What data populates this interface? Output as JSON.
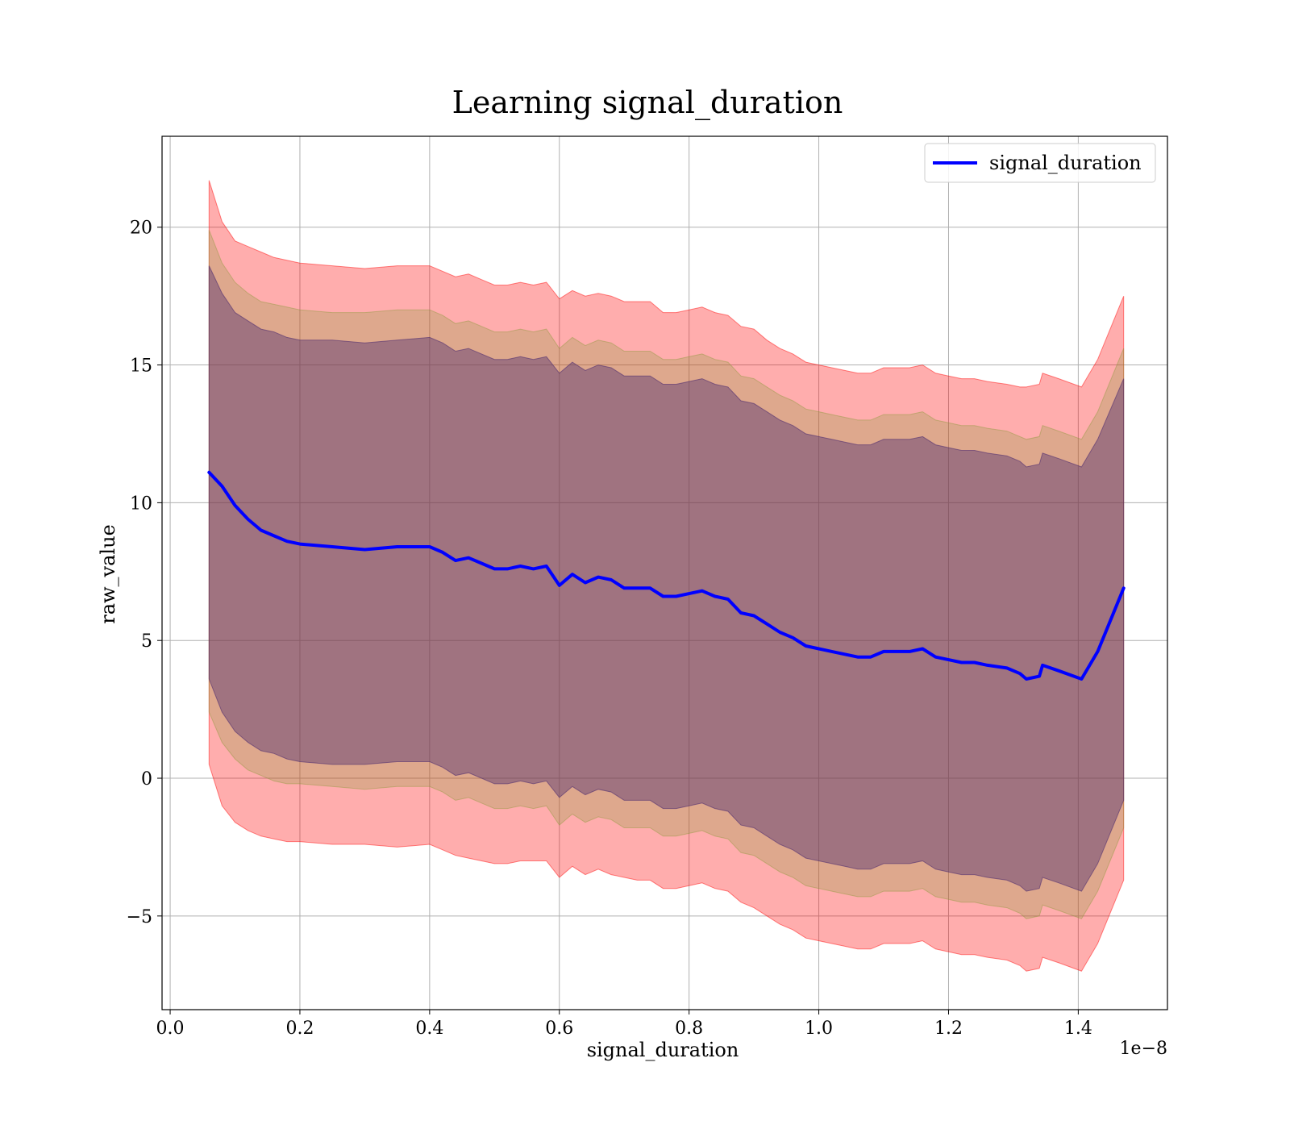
{
  "chart_data": {
    "type": "line",
    "title": "Learning signal_duration",
    "xlabel": "signal_duration",
    "ylabel": "raw_value",
    "x_offset_label": "1e−8",
    "xlim": [
      -0.0125,
      1.5375
    ],
    "ylim": [
      -8.4,
      23.3
    ],
    "xticks": [
      0.0,
      0.2,
      0.4,
      0.6,
      0.8,
      1.0,
      1.2,
      1.4
    ],
    "xtick_labels": [
      "0.0",
      "0.2",
      "0.4",
      "0.6",
      "0.8",
      "1.0",
      "1.2",
      "1.4"
    ],
    "yticks": [
      -5,
      0,
      5,
      10,
      15,
      20
    ],
    "ytick_labels": [
      "−5",
      "0",
      "5",
      "10",
      "15",
      "20"
    ],
    "grid": true,
    "legend": {
      "position": "upper-right",
      "entries": [
        "signal_duration"
      ]
    },
    "series": [
      {
        "name": "signal_duration",
        "color": "#0000ff",
        "x": [
          0.06,
          0.08,
          0.1,
          0.12,
          0.14,
          0.16,
          0.18,
          0.2,
          0.25,
          0.3,
          0.35,
          0.4,
          0.42,
          0.44,
          0.46,
          0.48,
          0.5,
          0.52,
          0.54,
          0.56,
          0.58,
          0.6,
          0.62,
          0.64,
          0.66,
          0.68,
          0.7,
          0.72,
          0.74,
          0.76,
          0.78,
          0.8,
          0.82,
          0.84,
          0.86,
          0.88,
          0.9,
          0.92,
          0.94,
          0.96,
          0.98,
          1.0,
          1.02,
          1.04,
          1.06,
          1.08,
          1.1,
          1.12,
          1.14,
          1.16,
          1.18,
          1.2,
          1.22,
          1.24,
          1.26,
          1.29,
          1.31,
          1.32,
          1.34,
          1.345,
          1.37,
          1.405,
          1.43,
          1.47
        ],
        "y": [
          11.1,
          10.6,
          9.9,
          9.4,
          9.0,
          8.8,
          8.6,
          8.5,
          8.4,
          8.3,
          8.4,
          8.4,
          8.2,
          7.9,
          8.0,
          7.8,
          7.6,
          7.6,
          7.7,
          7.6,
          7.7,
          7.0,
          7.4,
          7.1,
          7.3,
          7.2,
          6.9,
          6.9,
          6.9,
          6.6,
          6.6,
          6.7,
          6.8,
          6.6,
          6.5,
          6.0,
          5.9,
          5.6,
          5.3,
          5.1,
          4.8,
          4.7,
          4.6,
          4.5,
          4.4,
          4.4,
          4.6,
          4.6,
          4.6,
          4.7,
          4.4,
          4.3,
          4.2,
          4.2,
          4.1,
          4.0,
          3.8,
          3.6,
          3.7,
          4.1,
          3.9,
          3.6,
          4.6,
          6.9
        ]
      }
    ],
    "bands": [
      {
        "color": "#ff0000",
        "opacity": 0.32,
        "lower": [
          0.5,
          -1.0,
          -1.6,
          -1.9,
          -2.1,
          -2.2,
          -2.3,
          -2.3,
          -2.4,
          -2.4,
          -2.5,
          -2.4,
          -2.6,
          -2.8,
          -2.9,
          -3.0,
          -3.1,
          -3.1,
          -3.0,
          -3.0,
          -3.0,
          -3.6,
          -3.2,
          -3.5,
          -3.3,
          -3.5,
          -3.6,
          -3.7,
          -3.7,
          -4.0,
          -4.0,
          -3.9,
          -3.8,
          -4.0,
          -4.1,
          -4.5,
          -4.7,
          -5.0,
          -5.3,
          -5.5,
          -5.8,
          -5.9,
          -6.0,
          -6.1,
          -6.2,
          -6.2,
          -6.0,
          -6.0,
          -6.0,
          -5.9,
          -6.2,
          -6.3,
          -6.4,
          -6.4,
          -6.5,
          -6.6,
          -6.8,
          -7.0,
          -6.9,
          -6.5,
          -6.7,
          -7.0,
          -6.0,
          -3.7
        ],
        "upper": [
          21.7,
          20.2,
          19.5,
          19.3,
          19.1,
          18.9,
          18.8,
          18.7,
          18.6,
          18.5,
          18.6,
          18.6,
          18.4,
          18.2,
          18.3,
          18.1,
          17.9,
          17.9,
          18.0,
          17.9,
          18.0,
          17.4,
          17.7,
          17.5,
          17.6,
          17.5,
          17.3,
          17.3,
          17.3,
          16.9,
          16.9,
          17.0,
          17.1,
          16.9,
          16.8,
          16.4,
          16.3,
          15.9,
          15.6,
          15.4,
          15.1,
          15.0,
          14.9,
          14.8,
          14.7,
          14.7,
          14.9,
          14.9,
          14.9,
          15.0,
          14.7,
          14.6,
          14.5,
          14.5,
          14.4,
          14.3,
          14.2,
          14.2,
          14.3,
          14.7,
          14.5,
          14.2,
          15.2,
          17.5
        ]
      },
      {
        "color": "#8a9a3a",
        "opacity": 0.28,
        "lower": [
          2.4,
          1.3,
          0.7,
          0.3,
          0.1,
          -0.1,
          -0.2,
          -0.2,
          -0.3,
          -0.4,
          -0.3,
          -0.3,
          -0.5,
          -0.8,
          -0.7,
          -0.9,
          -1.1,
          -1.1,
          -1.0,
          -1.1,
          -1.0,
          -1.7,
          -1.3,
          -1.6,
          -1.4,
          -1.5,
          -1.8,
          -1.8,
          -1.8,
          -2.1,
          -2.1,
          -2.0,
          -1.9,
          -2.1,
          -2.2,
          -2.7,
          -2.8,
          -3.1,
          -3.4,
          -3.6,
          -3.9,
          -4.0,
          -4.1,
          -4.2,
          -4.3,
          -4.3,
          -4.1,
          -4.1,
          -4.1,
          -4.0,
          -4.3,
          -4.4,
          -4.5,
          -4.5,
          -4.6,
          -4.7,
          -4.9,
          -5.1,
          -5.0,
          -4.6,
          -4.8,
          -5.1,
          -4.1,
          -1.8
        ],
        "upper": [
          19.9,
          18.7,
          18.0,
          17.6,
          17.3,
          17.2,
          17.1,
          17.0,
          16.9,
          16.9,
          17.0,
          17.0,
          16.8,
          16.5,
          16.6,
          16.4,
          16.2,
          16.2,
          16.3,
          16.2,
          16.3,
          15.6,
          16.0,
          15.7,
          15.9,
          15.8,
          15.5,
          15.5,
          15.5,
          15.2,
          15.2,
          15.3,
          15.4,
          15.2,
          15.1,
          14.6,
          14.5,
          14.2,
          13.9,
          13.7,
          13.4,
          13.3,
          13.2,
          13.1,
          13.0,
          13.0,
          13.2,
          13.2,
          13.2,
          13.3,
          13.0,
          12.9,
          12.8,
          12.8,
          12.7,
          12.6,
          12.4,
          12.3,
          12.4,
          12.8,
          12.6,
          12.3,
          13.3,
          15.6
        ]
      },
      {
        "color": "#4b2a6e",
        "opacity": 0.42,
        "lower": [
          3.6,
          2.4,
          1.7,
          1.3,
          1.0,
          0.9,
          0.7,
          0.6,
          0.5,
          0.5,
          0.6,
          0.6,
          0.4,
          0.1,
          0.2,
          0.0,
          -0.2,
          -0.2,
          -0.1,
          -0.2,
          -0.1,
          -0.7,
          -0.3,
          -0.6,
          -0.4,
          -0.5,
          -0.8,
          -0.8,
          -0.8,
          -1.1,
          -1.1,
          -1.0,
          -0.9,
          -1.1,
          -1.2,
          -1.7,
          -1.8,
          -2.1,
          -2.4,
          -2.6,
          -2.9,
          -3.0,
          -3.1,
          -3.2,
          -3.3,
          -3.3,
          -3.1,
          -3.1,
          -3.1,
          -3.0,
          -3.3,
          -3.4,
          -3.5,
          -3.5,
          -3.6,
          -3.7,
          -3.9,
          -4.1,
          -4.0,
          -3.6,
          -3.8,
          -4.1,
          -3.1,
          -0.8
        ],
        "upper": [
          18.6,
          17.6,
          16.9,
          16.6,
          16.3,
          16.2,
          16.0,
          15.9,
          15.9,
          15.8,
          15.9,
          16.0,
          15.8,
          15.5,
          15.6,
          15.4,
          15.2,
          15.2,
          15.3,
          15.2,
          15.3,
          14.7,
          15.1,
          14.8,
          15.0,
          14.9,
          14.6,
          14.6,
          14.6,
          14.3,
          14.3,
          14.4,
          14.5,
          14.3,
          14.2,
          13.7,
          13.6,
          13.3,
          13.0,
          12.8,
          12.5,
          12.4,
          12.3,
          12.2,
          12.1,
          12.1,
          12.3,
          12.3,
          12.3,
          12.4,
          12.1,
          12.0,
          11.9,
          11.9,
          11.8,
          11.7,
          11.5,
          11.3,
          11.4,
          11.8,
          11.6,
          11.3,
          12.3,
          14.5
        ]
      }
    ]
  }
}
